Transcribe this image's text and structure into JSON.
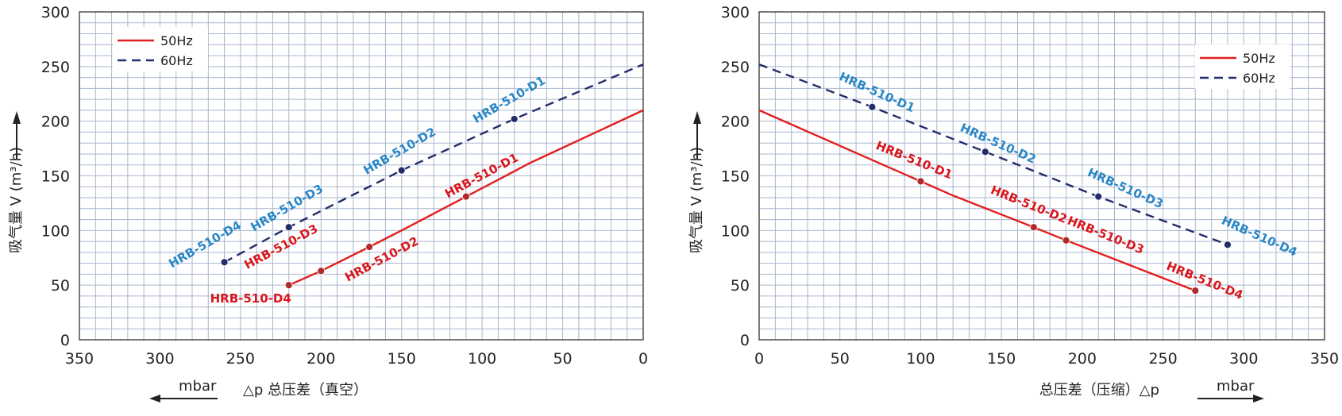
{
  "colors": {
    "hz50": "#e11f1f",
    "hz60": "#232c6b",
    "label50": "#d9161d",
    "label60": "#2a86c6",
    "grid": "#a9b6cf",
    "axis": "#222222",
    "text": "#222222"
  },
  "chart_data": [
    {
      "type": "line",
      "title": "",
      "xlabel": "△p  总压差（真空）",
      "xunit": "mbar",
      "xunit_arrow": "left",
      "ylabel": "吸气量 V (m³/h)",
      "xlim": [
        350,
        0
      ],
      "ylim": [
        0,
        300
      ],
      "x_reversed": true,
      "xticks": [
        350,
        300,
        250,
        200,
        150,
        100,
        50,
        0
      ],
      "yticks": [
        0,
        50,
        100,
        150,
        200,
        250,
        300
      ],
      "grid": true,
      "legend": {
        "position": "top-left",
        "entries": [
          {
            "label": "50Hz",
            "style": "solid"
          },
          {
            "label": "60Hz",
            "style": "dashed"
          }
        ]
      },
      "series": [
        {
          "name": "50Hz",
          "style": "solid",
          "color": "#e11f1f",
          "x": [
            220,
            200,
            170,
            150,
            110,
            70,
            0
          ],
          "y": [
            50,
            63,
            85,
            100,
            131,
            162,
            210
          ]
        },
        {
          "name": "60Hz",
          "style": "dashed",
          "color": "#232c6b",
          "x": [
            260,
            220,
            150,
            80,
            0
          ],
          "y": [
            71,
            103,
            155,
            202,
            252
          ]
        }
      ],
      "points": [
        {
          "series": "50Hz",
          "label": "HRB-510-D4",
          "x": 220,
          "y": 50
        },
        {
          "series": "50Hz",
          "label": "HRB-510-D3",
          "x": 200,
          "y": 63
        },
        {
          "series": "50Hz",
          "label": "HRB-510-D2",
          "x": 170,
          "y": 85
        },
        {
          "series": "50Hz",
          "label": "HRB-510-D1",
          "x": 110,
          "y": 131
        },
        {
          "series": "60Hz",
          "label": "HRB-510-D4",
          "x": 260,
          "y": 71
        },
        {
          "series": "60Hz",
          "label": "HRB-510-D3",
          "x": 220,
          "y": 103
        },
        {
          "series": "60Hz",
          "label": "HRB-510-D2",
          "x": 150,
          "y": 155
        },
        {
          "series": "60Hz",
          "label": "HRB-510-D1",
          "x": 80,
          "y": 202
        }
      ]
    },
    {
      "type": "line",
      "title": "",
      "xlabel": "总压差（压缩）△p",
      "xunit": "mbar",
      "xunit_arrow": "right",
      "ylabel": "吸气量 V (m³/h)",
      "xlim": [
        0,
        350
      ],
      "ylim": [
        0,
        300
      ],
      "x_reversed": false,
      "xticks": [
        0,
        50,
        100,
        150,
        200,
        250,
        300,
        350
      ],
      "yticks": [
        0,
        50,
        100,
        150,
        200,
        250,
        300
      ],
      "grid": true,
      "legend": {
        "position": "top-right",
        "entries": [
          {
            "label": "50Hz",
            "style": "solid"
          },
          {
            "label": "60Hz",
            "style": "dashed"
          }
        ]
      },
      "series": [
        {
          "name": "50Hz",
          "style": "solid",
          "color": "#e11f1f",
          "x": [
            0,
            100,
            120,
            170,
            190,
            270
          ],
          "y": [
            210,
            145,
            132,
            103,
            91,
            45
          ]
        },
        {
          "name": "60Hz",
          "style": "dashed",
          "color": "#232c6b",
          "x": [
            0,
            70,
            140,
            210,
            290
          ],
          "y": [
            252,
            213,
            172,
            131,
            87
          ]
        }
      ],
      "points": [
        {
          "series": "50Hz",
          "label": "HRB-510-D1",
          "x": 100,
          "y": 145
        },
        {
          "series": "50Hz",
          "label": "HRB-510-D2",
          "x": 170,
          "y": 103
        },
        {
          "series": "50Hz",
          "label": "HRB-510-D3",
          "x": 190,
          "y": 91
        },
        {
          "series": "50Hz",
          "label": "HRB-510-D4",
          "x": 270,
          "y": 45
        },
        {
          "series": "60Hz",
          "label": "HRB-510-D1",
          "x": 70,
          "y": 213
        },
        {
          "series": "60Hz",
          "label": "HRB-510-D2",
          "x": 140,
          "y": 172
        },
        {
          "series": "60Hz",
          "label": "HRB-510-D3",
          "x": 210,
          "y": 131
        },
        {
          "series": "60Hz",
          "label": "HRB-510-D4",
          "x": 290,
          "y": 87
        }
      ]
    }
  ]
}
